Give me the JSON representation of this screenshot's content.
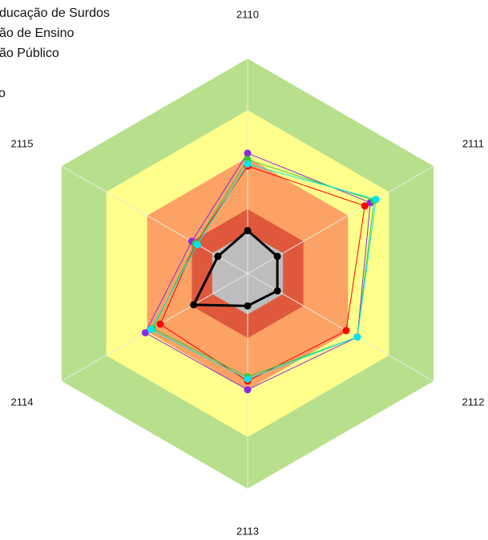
{
  "chart_data": {
    "type": "radar",
    "categories": [
      "2110",
      "2111",
      "2112",
      "2113",
      "2114",
      "2115"
    ],
    "rlim": [
      0,
      1
    ],
    "bands": [
      {
        "value": 1.0,
        "color": "#b8e08c"
      },
      {
        "value": 0.76,
        "color": "#ffff8c"
      },
      {
        "value": 0.54,
        "color": "#fca264"
      },
      {
        "value": 0.3,
        "color": "#e0583c"
      },
      {
        "value": 0.19,
        "color": "#bdbdbd"
      }
    ],
    "series": [
      {
        "color": "#8a2be2",
        "values": [
          0.56,
          0.66,
          0.59,
          0.54,
          0.55,
          0.3
        ]
      },
      {
        "name": "ducação de Surdos",
        "color": "#ff0000",
        "values": [
          0.5,
          0.63,
          0.53,
          0.5,
          0.47,
          0.28
        ]
      },
      {
        "name": "ão de Ensino",
        "color": "#33cc33",
        "values": [
          0.53,
          0.68,
          0.59,
          0.48,
          0.51,
          0.28
        ]
      },
      {
        "name": "ão Público",
        "color": "#00e5ee",
        "values": [
          0.51,
          0.69,
          0.59,
          0.49,
          0.52,
          0.27
        ]
      },
      {
        "name": "o",
        "color": "#000000",
        "values": [
          0.2,
          0.16,
          0.16,
          0.15,
          0.29,
          0.16
        ]
      }
    ]
  }
}
